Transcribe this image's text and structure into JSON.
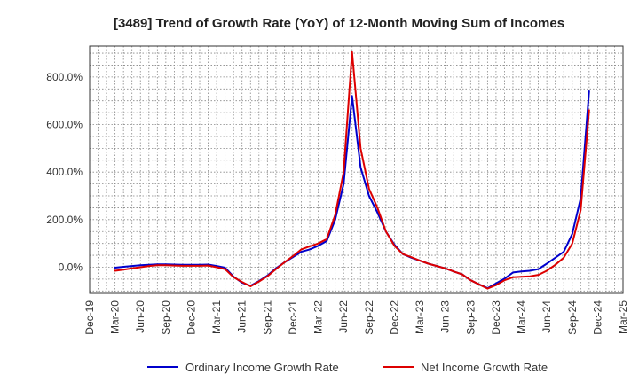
{
  "chart_data": {
    "type": "line",
    "title": "[3489]  Trend of Growth Rate (YoY) of 12-Month Moving Sum of Incomes",
    "xlabel": "",
    "ylabel": "",
    "ylim": [
      -110,
      930
    ],
    "y_ticks": [
      0,
      200,
      400,
      600,
      800
    ],
    "y_tick_labels": [
      "0.0%",
      "200.0%",
      "400.0%",
      "600.0%",
      "800.0%"
    ],
    "x_tick_labels": [
      "Dec-19",
      "Mar-20",
      "Jun-20",
      "Sep-20",
      "Dec-20",
      "Mar-21",
      "Jun-21",
      "Sep-21",
      "Dec-21",
      "Mar-22",
      "Jun-22",
      "Sep-22",
      "Dec-22",
      "Mar-23",
      "Jun-23",
      "Sep-23",
      "Dec-23",
      "Mar-24",
      "Jun-24",
      "Sep-24",
      "Dec-24",
      "Mar-25"
    ],
    "x_months": [
      "Dec-19",
      "Jan-20",
      "Feb-20",
      "Mar-20",
      "Apr-20",
      "May-20",
      "Jun-20",
      "Jul-20",
      "Aug-20",
      "Sep-20",
      "Oct-20",
      "Nov-20",
      "Dec-20",
      "Jan-21",
      "Feb-21",
      "Mar-21",
      "Apr-21",
      "May-21",
      "Jun-21",
      "Jul-21",
      "Aug-21",
      "Sep-21",
      "Oct-21",
      "Nov-21",
      "Dec-21",
      "Jan-22",
      "Feb-22",
      "Mar-22",
      "Apr-22",
      "May-22",
      "Jun-22",
      "Jul-22",
      "Aug-22",
      "Sep-22",
      "Oct-22",
      "Nov-22",
      "Dec-22",
      "Jan-23",
      "Feb-23",
      "Mar-23",
      "Apr-23",
      "May-23",
      "Jun-23",
      "Jul-23",
      "Aug-23",
      "Sep-23",
      "Oct-23",
      "Nov-23",
      "Dec-23",
      "Jan-24",
      "Feb-24",
      "Mar-24",
      "Apr-24",
      "May-24",
      "Jun-24",
      "Jul-24",
      "Aug-24",
      "Sep-24",
      "Oct-24",
      "Nov-24",
      "Dec-24",
      "Jan-25",
      "Feb-25",
      "Mar-25"
    ],
    "series": [
      {
        "name": "Ordinary Income Growth Rate",
        "color": "#0000cc",
        "start_index": 3,
        "values": [
          -2,
          2,
          5,
          8,
          10,
          12,
          12,
          11,
          10,
          10,
          10,
          11,
          5,
          -2,
          -40,
          -65,
          -78,
          -58,
          -35,
          -5,
          20,
          42,
          65,
          75,
          90,
          110,
          200,
          350,
          720,
          420,
          300,
          230,
          150,
          95,
          55,
          40,
          28,
          15,
          5,
          -5,
          -18,
          -30,
          -55,
          -72,
          -88,
          -68,
          -48,
          -22,
          -18,
          -15,
          -8,
          15,
          40,
          65,
          140,
          290,
          740
        ]
      },
      {
        "name": "Net Income Growth Rate",
        "color": "#dd0000",
        "start_index": 3,
        "values": [
          -15,
          -10,
          -5,
          0,
          5,
          8,
          8,
          7,
          6,
          6,
          6,
          7,
          0,
          -8,
          -42,
          -62,
          -80,
          -60,
          -38,
          -8,
          20,
          46,
          75,
          88,
          100,
          118,
          220,
          400,
          905,
          500,
          330,
          250,
          150,
          90,
          55,
          42,
          28,
          15,
          5,
          -5,
          -18,
          -30,
          -55,
          -72,
          -90,
          -75,
          -55,
          -42,
          -40,
          -38,
          -32,
          -15,
          10,
          40,
          100,
          240,
          660
        ]
      }
    ],
    "legend": [
      "Ordinary Income Growth Rate",
      "Net Income Growth Rate"
    ],
    "legend_position": "bottom-center",
    "grid": true
  }
}
